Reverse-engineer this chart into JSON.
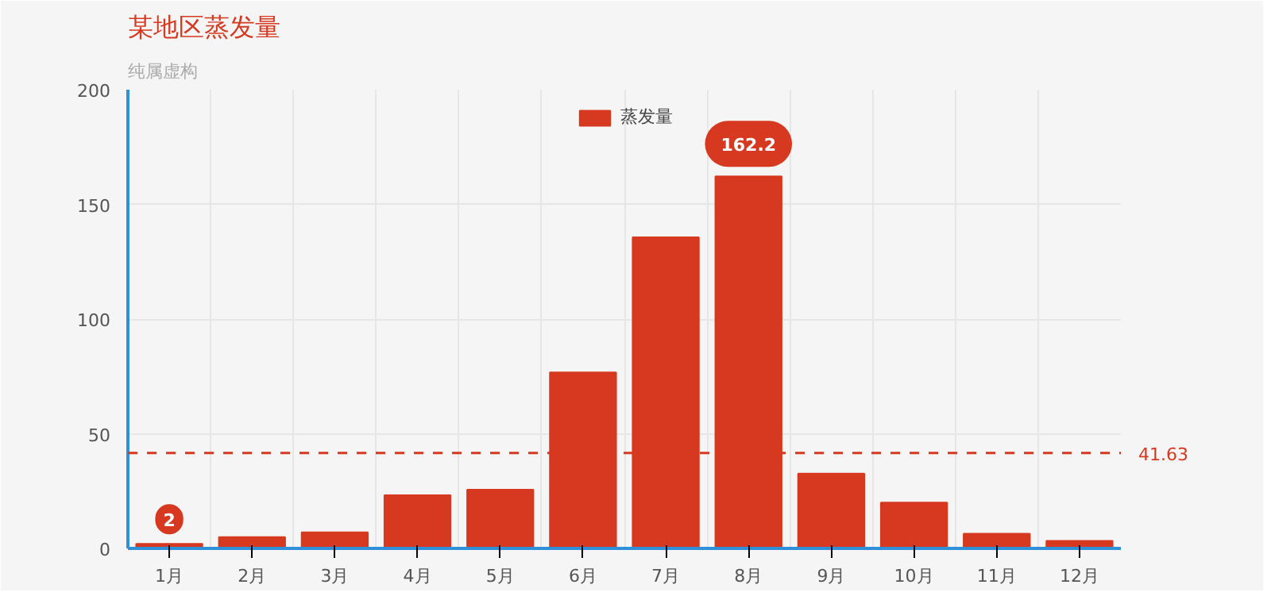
{
  "chart_data": {
    "type": "bar",
    "title": "某地区蒸发量",
    "subtitle": "纯属虚构",
    "categories": [
      "1月",
      "2月",
      "3月",
      "4月",
      "5月",
      "6月",
      "7月",
      "8月",
      "9月",
      "10月",
      "11月",
      "12月"
    ],
    "series": [
      {
        "name": "蒸发量",
        "color": "#d6391f",
        "values": [
          2.0,
          4.9,
          7.0,
          23.2,
          25.6,
          76.7,
          135.6,
          162.2,
          32.6,
          20.0,
          6.4,
          3.3
        ]
      }
    ],
    "ylim": [
      0,
      200
    ],
    "yticks": [
      0,
      50,
      100,
      150,
      200
    ],
    "grid": true,
    "legend": "top",
    "ref_lines": [
      {
        "axis": "y",
        "value": 41.63,
        "label": "41.63",
        "color": "#d6391f",
        "line_style": "dashed"
      }
    ],
    "annotations": [
      {
        "text": "2",
        "x": "1月",
        "y": 2.0
      },
      {
        "text": "162.2",
        "x": "8月",
        "y": 162.2
      }
    ]
  }
}
